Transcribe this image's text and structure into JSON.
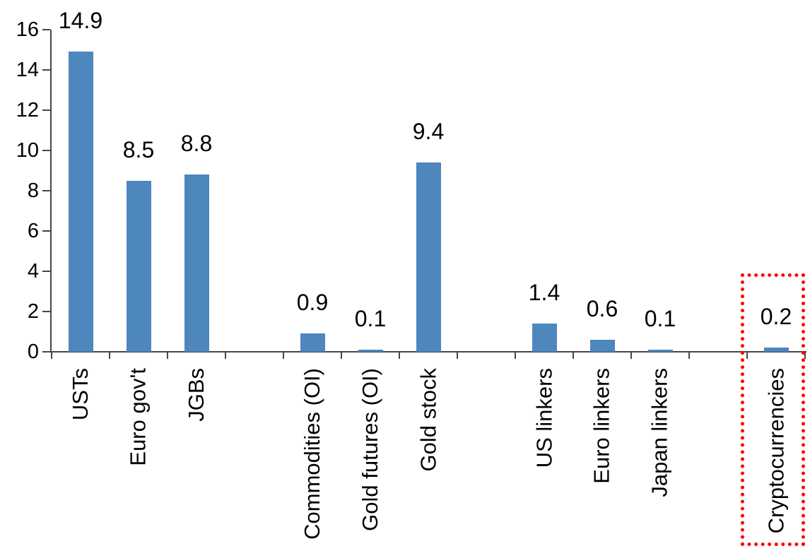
{
  "chart_data": {
    "type": "bar",
    "title": "",
    "xlabel": "",
    "ylabel": "",
    "categories": [
      "USTs",
      "Euro gov't",
      "JGBs",
      "Commodities (OI)",
      "Gold futures (OI)",
      "Gold stock",
      "US linkers",
      "Euro linkers",
      "Japan linkers",
      "Cryptocurrencies"
    ],
    "values": [
      14.9,
      8.5,
      8.8,
      0.9,
      0.1,
      9.4,
      1.4,
      0.6,
      0.1,
      0.2
    ],
    "data_labels": [
      "14.9",
      "8.5",
      "8.8",
      "0.9",
      "0.1",
      "9.4",
      "1.4",
      "0.6",
      "0.1",
      "0.2"
    ],
    "slot_indices": [
      0,
      1,
      2,
      4,
      5,
      6,
      8,
      9,
      10,
      12
    ],
    "total_slots": 13,
    "ylim": [
      0,
      16
    ],
    "yticks": [
      0,
      2,
      4,
      6,
      8,
      10,
      12,
      14,
      16
    ],
    "grid": false,
    "legend": false,
    "bar_color": "#4E86BE",
    "axis_color": "#474747",
    "text_color": "#000000",
    "highlight": {
      "category": "Cryptocurrencies",
      "style": "dotted-box",
      "box_color": "#FF0000"
    }
  }
}
